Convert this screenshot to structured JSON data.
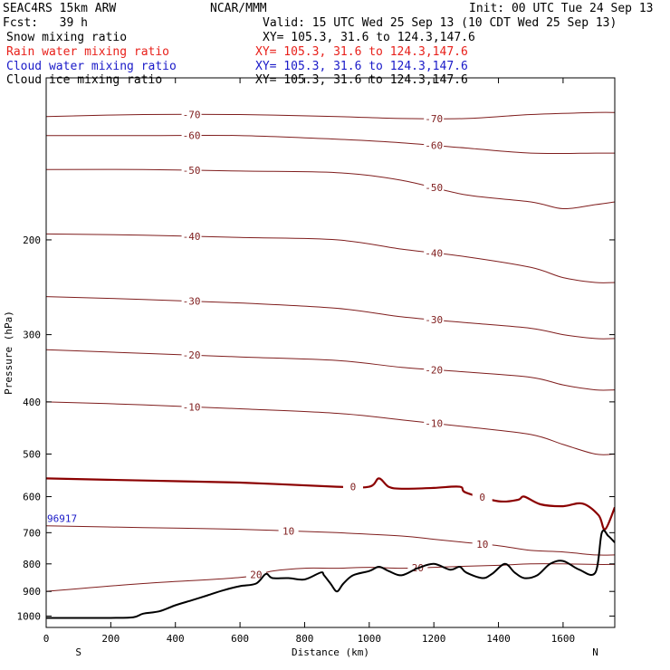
{
  "header": {
    "model": "SEAC4RS 15km ARW",
    "org": "NCAR/MMM",
    "init": "Init: 00 UTC Tue 24 Sep 13",
    "fcst": "Fcst:   39 h",
    "valid": "Valid: 15 UTC Wed 25 Sep 13 (10 CDT Wed 25 Sep 13)",
    "fields": [
      {
        "name": "Snow mixing ratio",
        "xy": "XY= 105.3, 31.6 to 124.3,147.6",
        "color": "#000000"
      },
      {
        "name": "Rain water mixing ratio",
        "xy": "XY= 105.3, 31.6 to 124.3,147.6",
        "color": "#e8211b"
      },
      {
        "name": "Cloud water mixing ratio",
        "xy": "XY= 105.3, 31.6 to 124.3,147.6",
        "color": "#1a1ac8"
      },
      {
        "name": "Cloud ice mixing ratio",
        "xy": "XY= 105.3, 31.6 to 124.3,147.6",
        "color": "#000000"
      }
    ]
  },
  "chart_data": {
    "type": "line",
    "xlabel": "Distance (km)",
    "ylabel": "Pressure (hPa)",
    "xlim": [
      0,
      1760
    ],
    "ylim": [
      1050,
      100
    ],
    "y_scale": "log",
    "x_ticks": [
      0,
      200,
      400,
      600,
      800,
      1000,
      1200,
      1400,
      1600
    ],
    "y_ticks": [
      200,
      300,
      400,
      500,
      600,
      700,
      800,
      900,
      1000
    ],
    "end_labels": {
      "left": "S",
      "right": "N"
    },
    "stray_label": "96917",
    "contour_color": "#7f1d1d",
    "freezing_level_color": "#8b0000",
    "terrain_color": "#000000",
    "temperature_contours": [
      {
        "level": -70,
        "x": [
          0,
          300,
          600,
          900,
          1100,
          1300,
          1500,
          1700,
          1760
        ],
        "p": [
          118,
          117,
          117,
          118,
          119,
          119,
          117,
          116,
          116
        ]
      },
      {
        "level": -60,
        "x": [
          0,
          300,
          600,
          900,
          1100,
          1300,
          1500,
          1700,
          1760
        ],
        "p": [
          128,
          128,
          128,
          130,
          132,
          135,
          138,
          138,
          138
        ]
      },
      {
        "level": -50,
        "x": [
          0,
          300,
          600,
          900,
          1100,
          1300,
          1500,
          1600,
          1700,
          1760
        ],
        "p": [
          148,
          148,
          149,
          150,
          155,
          165,
          170,
          175,
          172,
          170
        ]
      },
      {
        "level": -40,
        "x": [
          0,
          300,
          600,
          900,
          1100,
          1300,
          1500,
          1600,
          1700,
          1760
        ],
        "p": [
          195,
          196,
          198,
          200,
          208,
          215,
          225,
          235,
          240,
          240
        ]
      },
      {
        "level": -30,
        "x": [
          0,
          300,
          600,
          900,
          1100,
          1300,
          1500,
          1600,
          1700,
          1760
        ],
        "p": [
          255,
          258,
          262,
          268,
          278,
          285,
          292,
          300,
          305,
          305
        ]
      },
      {
        "level": -20,
        "x": [
          0,
          300,
          600,
          900,
          1100,
          1300,
          1500,
          1600,
          1700,
          1760
        ],
        "p": [
          320,
          325,
          330,
          335,
          345,
          352,
          360,
          372,
          380,
          380
        ]
      },
      {
        "level": -10,
        "x": [
          0,
          300,
          600,
          900,
          1100,
          1300,
          1500,
          1600,
          1700,
          1760
        ],
        "p": [
          400,
          405,
          412,
          420,
          432,
          445,
          460,
          480,
          500,
          500
        ]
      },
      {
        "level": 0,
        "x": [
          0,
          300,
          600,
          900,
          1000,
          1030,
          1060,
          1100,
          1200,
          1280,
          1300,
          1400,
          1460,
          1480,
          1530,
          1600,
          1660,
          1710,
          1730,
          1760
        ],
        "p": [
          555,
          560,
          565,
          575,
          575,
          555,
          575,
          580,
          578,
          575,
          590,
          612,
          608,
          600,
          620,
          625,
          618,
          650,
          690,
          628
        ]
      },
      {
        "level": 10,
        "x": [
          0,
          300,
          600,
          900,
          1100,
          1200,
          1300,
          1400,
          1500,
          1600,
          1700,
          1760
        ],
        "p": [
          680,
          685,
          690,
          700,
          710,
          720,
          730,
          740,
          755,
          760,
          770,
          770
        ]
      },
      {
        "level": 20,
        "x": [
          0,
          300,
          600,
          700,
          800,
          900,
          1000,
          1100,
          1200,
          1300,
          1400,
          1500,
          1600,
          1700,
          1760
        ],
        "p": [
          900,
          870,
          848,
          825,
          815,
          815,
          812,
          815,
          812,
          808,
          805,
          800,
          800,
          802,
          802
        ]
      }
    ],
    "terrain": {
      "x": [
        0,
        100,
        200,
        270,
        300,
        350,
        400,
        450,
        500,
        550,
        600,
        650,
        680,
        700,
        750,
        800,
        850,
        860,
        880,
        900,
        920,
        950,
        1000,
        1030,
        1060,
        1100,
        1150,
        1200,
        1250,
        1280,
        1300,
        1350,
        1380,
        1420,
        1450,
        1480,
        1520,
        1560,
        1600,
        1650,
        1700,
        1720,
        1740,
        1760
      ],
      "p": [
        1008,
        1008,
        1008,
        1005,
        990,
        980,
        955,
        935,
        915,
        895,
        880,
        870,
        835,
        850,
        850,
        855,
        830,
        840,
        870,
        900,
        870,
        840,
        825,
        810,
        825,
        840,
        815,
        800,
        820,
        810,
        830,
        850,
        835,
        800,
        830,
        850,
        840,
        800,
        790,
        820,
        830,
        700,
        710,
        730
      ]
    }
  }
}
